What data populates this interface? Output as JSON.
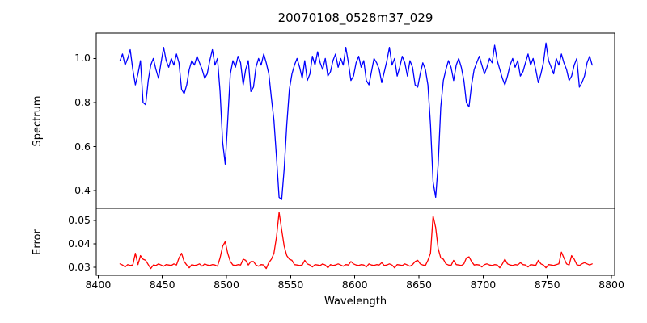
{
  "chart_data": [
    {
      "type": "line",
      "panel": "spectrum",
      "title": "20070108_0528m37_029",
      "xlabel": "",
      "ylabel": "Spectrum",
      "line_color": "#0000ff",
      "grid": false,
      "legend": "none",
      "xlim": [
        8398.5,
        8802.5
      ],
      "ylim": [
        0.32,
        1.115
      ],
      "y_ticks": [
        1.0,
        0.8,
        0.6,
        0.4
      ],
      "y_tick_labels": [
        "1.0",
        "0.8",
        "0.6",
        "0.4"
      ],
      "x_start": 8417,
      "x_step": 2,
      "values": [
        0.99,
        1.02,
        0.97,
        1.0,
        1.04,
        0.95,
        0.88,
        0.93,
        0.99,
        0.8,
        0.79,
        0.9,
        0.97,
        1.0,
        0.95,
        0.91,
        0.98,
        1.05,
        0.99,
        0.96,
        1.0,
        0.97,
        1.02,
        0.98,
        0.86,
        0.84,
        0.88,
        0.95,
        0.99,
        0.97,
        1.01,
        0.98,
        0.95,
        0.91,
        0.93,
        0.99,
        1.04,
        0.97,
        1.0,
        0.85,
        0.62,
        0.52,
        0.72,
        0.93,
        0.99,
        0.96,
        1.01,
        0.98,
        0.88,
        0.95,
        0.99,
        0.85,
        0.87,
        0.96,
        1.0,
        0.97,
        1.02,
        0.98,
        0.93,
        0.82,
        0.72,
        0.55,
        0.37,
        0.36,
        0.5,
        0.7,
        0.86,
        0.93,
        0.97,
        1.0,
        0.96,
        0.91,
        0.99,
        0.9,
        0.93,
        1.01,
        0.97,
        1.03,
        0.98,
        0.95,
        1.0,
        0.92,
        0.94,
        0.99,
        1.02,
        0.96,
        1.0,
        0.97,
        1.05,
        0.98,
        0.9,
        0.92,
        0.98,
        1.01,
        0.96,
        0.99,
        0.9,
        0.88,
        0.94,
        1.0,
        0.98,
        0.95,
        0.89,
        0.94,
        0.99,
        1.05,
        0.97,
        1.0,
        0.92,
        0.96,
        1.01,
        0.98,
        0.92,
        0.99,
        0.96,
        0.88,
        0.87,
        0.93,
        0.98,
        0.95,
        0.88,
        0.7,
        0.44,
        0.37,
        0.52,
        0.78,
        0.9,
        0.95,
        0.99,
        0.96,
        0.9,
        0.97,
        1.0,
        0.96,
        0.9,
        0.8,
        0.78,
        0.88,
        0.95,
        0.98,
        1.01,
        0.97,
        0.93,
        0.96,
        1.0,
        0.98,
        1.06,
        0.99,
        0.95,
        0.91,
        0.88,
        0.92,
        0.97,
        1.0,
        0.96,
        0.99,
        0.92,
        0.94,
        0.98,
        1.02,
        0.97,
        1.0,
        0.95,
        0.89,
        0.93,
        0.98,
        1.07,
        0.99,
        0.96,
        0.93,
        1.0,
        0.97,
        1.02,
        0.98,
        0.95,
        0.9,
        0.92,
        0.97,
        1.0,
        0.87,
        0.89,
        0.92,
        0.98,
        1.01,
        0.97
      ]
    },
    {
      "type": "line",
      "panel": "error",
      "xlabel": "Wavelength",
      "ylabel": "Error",
      "line_color": "#ff0000",
      "grid": false,
      "legend": "none",
      "xlim": [
        8398.5,
        8802.5
      ],
      "ylim": [
        0.0266,
        0.0552
      ],
      "x_ticks": [
        8400,
        8450,
        8500,
        8550,
        8600,
        8650,
        8700,
        8750,
        8800
      ],
      "x_tick_labels": [
        "8400",
        "8450",
        "8500",
        "8550",
        "8600",
        "8650",
        "8700",
        "8750",
        "8800"
      ],
      "y_ticks": [
        0.05,
        0.04,
        0.03
      ],
      "y_tick_labels": [
        "0.05",
        "0.04",
        "0.03"
      ],
      "x_start": 8417,
      "x_step": 2,
      "values": [
        0.0315,
        0.031,
        0.0302,
        0.0312,
        0.0308,
        0.031,
        0.036,
        0.0312,
        0.035,
        0.0335,
        0.033,
        0.0312,
        0.0295,
        0.031,
        0.0308,
        0.0315,
        0.031,
        0.0305,
        0.0312,
        0.031,
        0.0308,
        0.0315,
        0.031,
        0.034,
        0.036,
        0.0325,
        0.031,
        0.0298,
        0.0312,
        0.0308,
        0.031,
        0.0315,
        0.0305,
        0.0315,
        0.031,
        0.0308,
        0.0312,
        0.031,
        0.0305,
        0.034,
        0.039,
        0.041,
        0.036,
        0.0325,
        0.031,
        0.0308,
        0.0312,
        0.031,
        0.0335,
        0.033,
        0.031,
        0.0325,
        0.0325,
        0.031,
        0.0305,
        0.0312,
        0.031,
        0.0295,
        0.032,
        0.0335,
        0.036,
        0.043,
        0.0535,
        0.046,
        0.039,
        0.035,
        0.0335,
        0.033,
        0.0312,
        0.031,
        0.0308,
        0.031,
        0.033,
        0.0315,
        0.031,
        0.0302,
        0.0312,
        0.031,
        0.0308,
        0.0315,
        0.031,
        0.0298,
        0.0312,
        0.0308,
        0.031,
        0.0315,
        0.031,
        0.0305,
        0.0312,
        0.031,
        0.0325,
        0.0315,
        0.031,
        0.0308,
        0.0312,
        0.031,
        0.0302,
        0.0315,
        0.031,
        0.0308,
        0.0312,
        0.031,
        0.032,
        0.0308,
        0.031,
        0.0315,
        0.031,
        0.0298,
        0.0312,
        0.031,
        0.0308,
        0.0315,
        0.031,
        0.0305,
        0.0312,
        0.0325,
        0.033,
        0.0315,
        0.031,
        0.0308,
        0.033,
        0.036,
        0.052,
        0.047,
        0.038,
        0.034,
        0.0335,
        0.0315,
        0.031,
        0.0308,
        0.033,
        0.0312,
        0.031,
        0.0308,
        0.0315,
        0.034,
        0.0345,
        0.0325,
        0.031,
        0.0312,
        0.031,
        0.0302,
        0.0312,
        0.0315,
        0.031,
        0.0308,
        0.0312,
        0.031,
        0.0298,
        0.0315,
        0.0335,
        0.0315,
        0.031,
        0.0308,
        0.0312,
        0.031,
        0.032,
        0.0312,
        0.031,
        0.0302,
        0.0312,
        0.031,
        0.0308,
        0.033,
        0.0315,
        0.031,
        0.0298,
        0.0312,
        0.031,
        0.0308,
        0.0312,
        0.0315,
        0.0365,
        0.034,
        0.0315,
        0.031,
        0.035,
        0.0335,
        0.0312,
        0.0308,
        0.0315,
        0.032,
        0.0315,
        0.031,
        0.0315
      ]
    }
  ]
}
